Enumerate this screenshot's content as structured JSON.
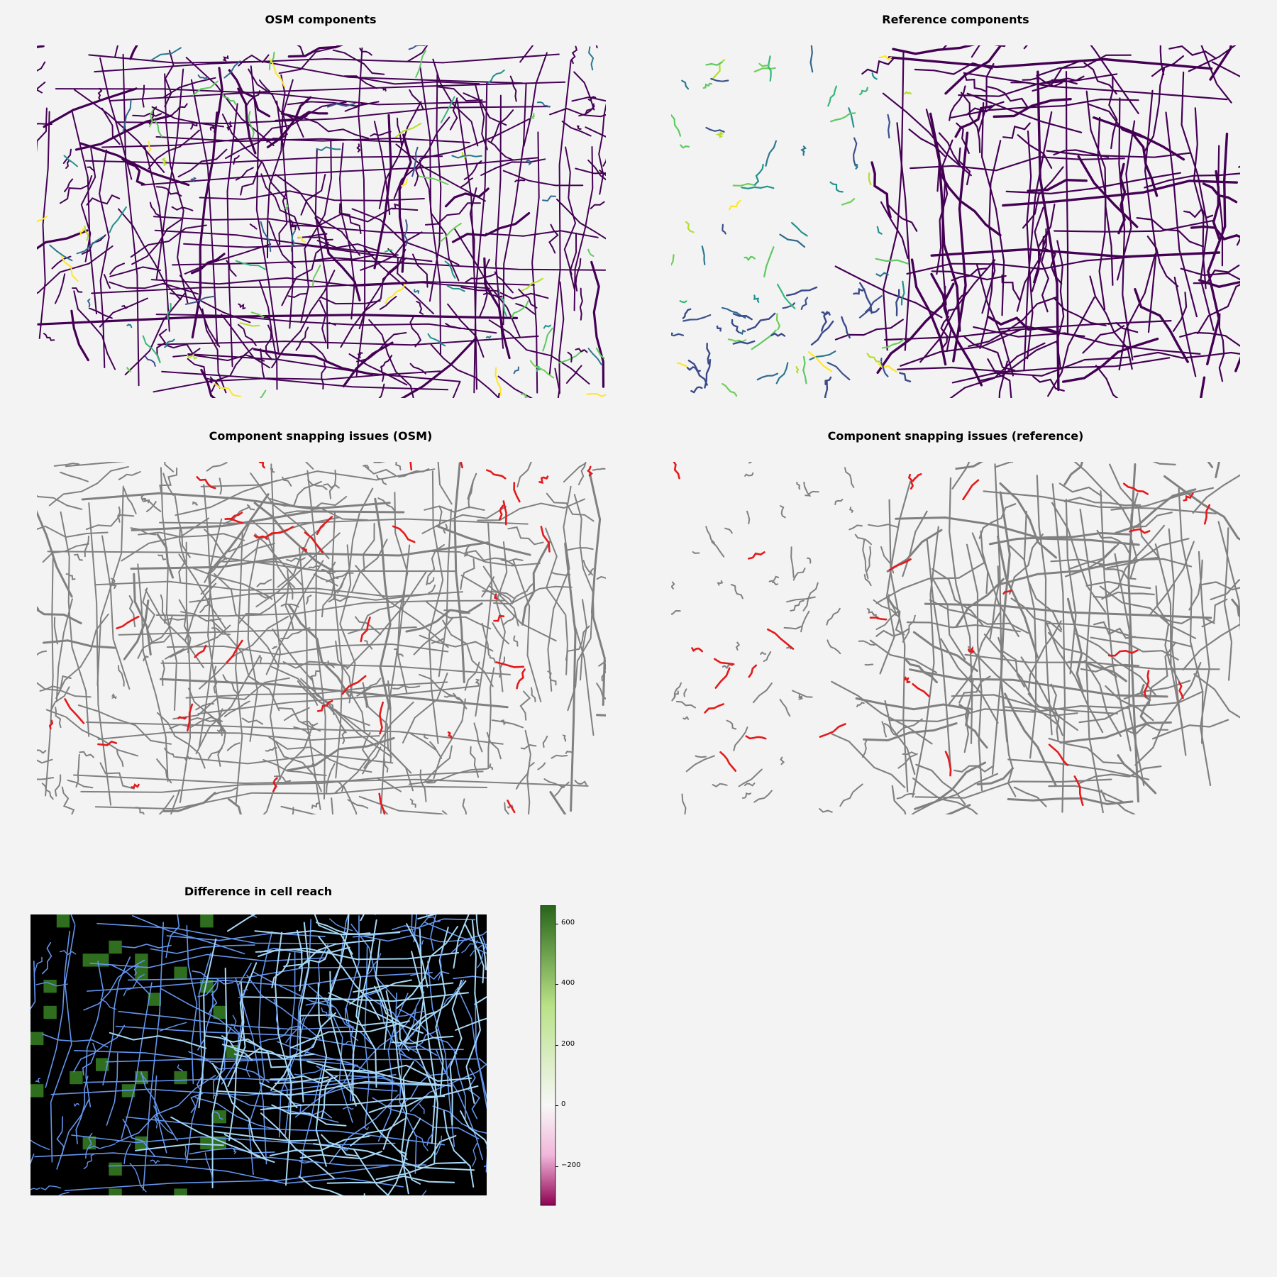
{
  "panels": {
    "osm_components": {
      "title": "OSM components"
    },
    "ref_components": {
      "title": "Reference components"
    },
    "osm_snapping": {
      "title": "Component snapping issues (OSM)"
    },
    "ref_snapping": {
      "title": "Component snapping issues (reference)"
    },
    "cell_reach": {
      "title": "Difference in cell reach"
    }
  },
  "colorbar": {
    "ticks": [
      "600",
      "400",
      "200",
      "0",
      "−200"
    ],
    "range": [
      -330,
      660
    ],
    "colors": {
      "high": "#276419",
      "mid_high": "#b8e186",
      "zero": "#f7f7f7",
      "mid_low": "#f1b6da",
      "low": "#8e0152"
    }
  },
  "colors": {
    "main_component": "#440154",
    "snapping_issue": "#e41a1c",
    "network_gray": "#808080",
    "osm_overlay": "#6495ed",
    "ref_overlay": "#a7d8f5",
    "background": "#f3f3f3"
  }
}
